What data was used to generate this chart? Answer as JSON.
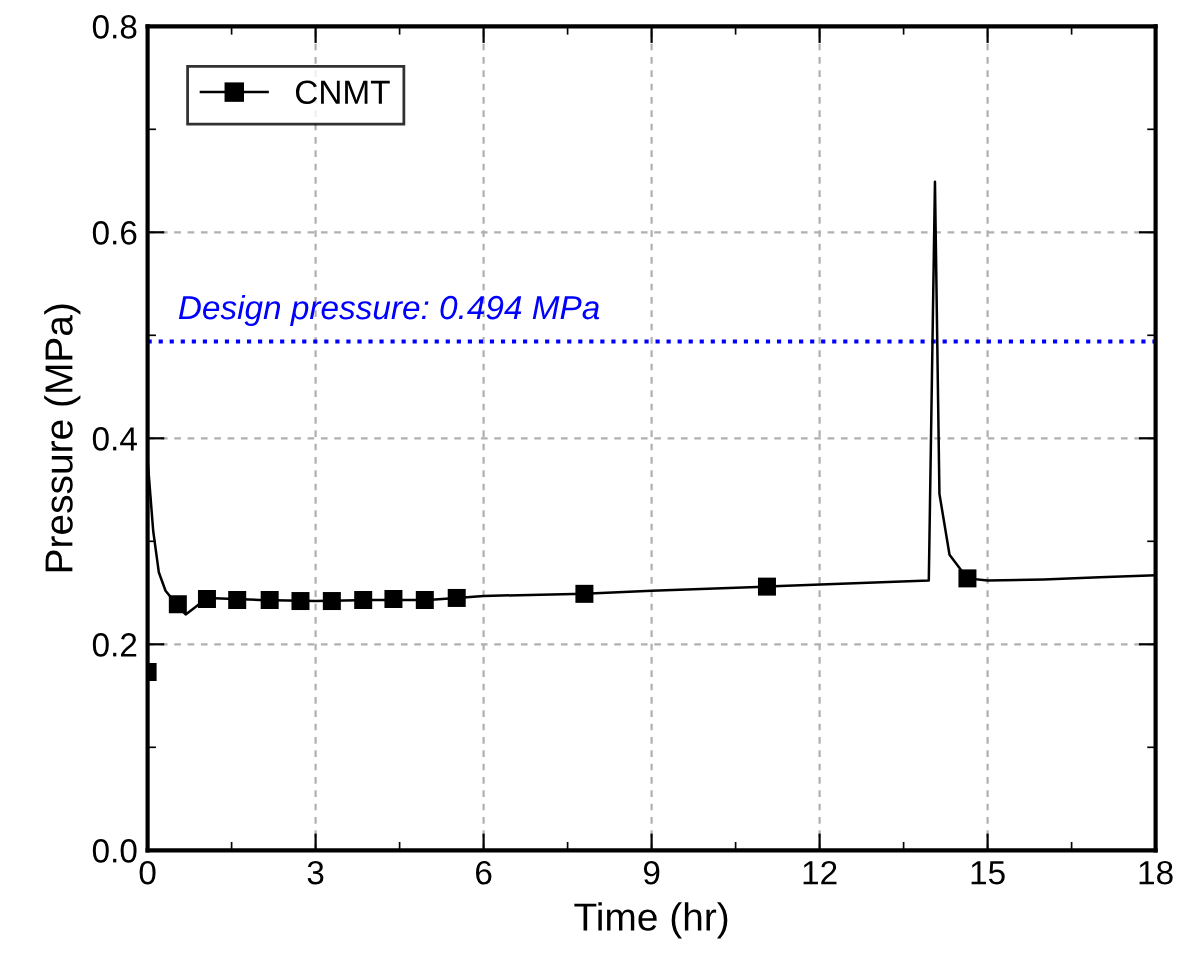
{
  "chart_data": {
    "type": "line",
    "xlabel": "Time (hr)",
    "ylabel": "Pressure (MPa)",
    "xlim": [
      0,
      18
    ],
    "ylim": [
      0.0,
      0.8
    ],
    "xticks": [
      0,
      3,
      6,
      9,
      12,
      15,
      18
    ],
    "yticks": [
      {
        "value": 0.0,
        "label": "0.0"
      },
      {
        "value": 0.2,
        "label": "0.2"
      },
      {
        "value": 0.4,
        "label": "0.4"
      },
      {
        "value": 0.6,
        "label": "0.6"
      },
      {
        "value": 0.8,
        "label": "0.8"
      }
    ],
    "grid": true,
    "legend": "top left",
    "ref_lines": [
      {
        "axis": "y",
        "value": 0.494,
        "label": "Design pressure: 0.494 MPa",
        "color": "#0000ff",
        "line_style": "dotted"
      }
    ],
    "series": [
      {
        "name": "CNMT",
        "color": "#000000",
        "marker": "none",
        "line_style": "solid",
        "x": [
          0,
          0.1,
          0.2,
          0.32,
          0.5,
          0.68,
          0.85,
          1.06,
          2,
          3,
          4,
          5,
          5.52,
          6,
          7.8,
          9,
          11.06,
          12.5,
          13.95,
          14.06,
          14.14,
          14.32,
          14.64,
          15,
          16,
          17,
          18
        ],
        "values": [
          0.379,
          0.31,
          0.27,
          0.252,
          0.24,
          0.229,
          0.236,
          0.245,
          0.243,
          0.242,
          0.243,
          0.243,
          0.245,
          0.247,
          0.249,
          0.252,
          0.256,
          0.259,
          0.262,
          0.649,
          0.346,
          0.287,
          0.264,
          0.262,
          0.263,
          0.265,
          0.267
        ]
      },
      {
        "type": "scatter",
        "color": "#000000",
        "marker": "square",
        "x": [
          0,
          0.54,
          1.06,
          1.6,
          2.18,
          2.73,
          3.29,
          3.85,
          4.39,
          4.95,
          5.52,
          7.8,
          11.06,
          14.64
        ],
        "values": [
          0.173,
          0.239,
          0.244,
          0.243,
          0.243,
          0.242,
          0.242,
          0.243,
          0.244,
          0.243,
          0.245,
          0.249,
          0.256,
          0.264
        ]
      }
    ]
  }
}
